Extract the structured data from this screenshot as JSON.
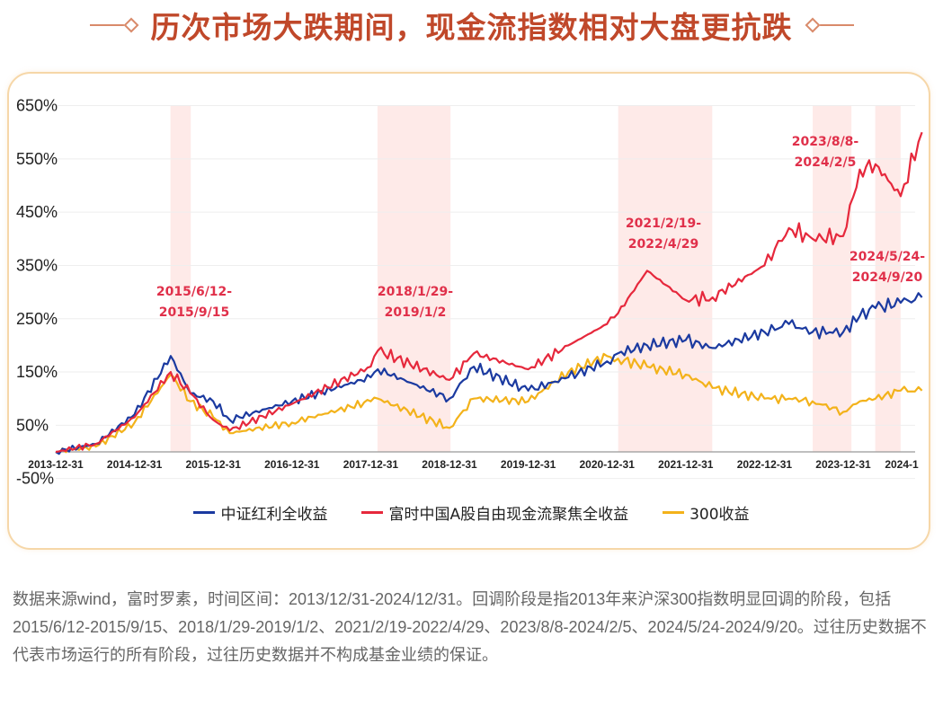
{
  "title": "历次市场大跌期间，现金流指数相对大盘更抗跌",
  "legend": [
    {
      "label": "中证红利全收益",
      "color": "#1b3aa0"
    },
    {
      "label": "富时中国A股自由现金流聚焦全收益",
      "color": "#e6283c"
    },
    {
      "label": "300收益",
      "color": "#f3b21a"
    }
  ],
  "footnote": "数据来源wind，富时罗素，时间区间：2013/12/31-2024/12/31。回调阶段是指2013年来沪深300指数明显回调的阶段，包括2015/6/12-2015/9/15、2018/1/29-2019/1/2、2021/2/19-2022/4/29、2023/8/8-2024/2/5、2024/5/24-2024/9/20。过往历史数据不代表市场运行的所有阶段，过往历史数据并不构成基金业绩的保证。",
  "chart_data": {
    "type": "line",
    "title": "历次市场大跌期间，现金流指数相对大盘更抗跌",
    "xlabel": "",
    "ylabel": "",
    "ylim": [
      -50,
      650
    ],
    "yticks": [
      "650%",
      "550%",
      "450%",
      "350%",
      "250%",
      "150%",
      "50%",
      "-50%"
    ],
    "xticks": [
      "2013-12-31",
      "2014-12-31",
      "2015-12-31",
      "2016-12-31",
      "2017-12-31",
      "2018-12-31",
      "2019-12-31",
      "2020-12-31",
      "2021-12-31",
      "2022-12-31",
      "2023-12-31",
      "2024-1"
    ],
    "grid": true,
    "legend_position": "bottom",
    "shaded_periods": [
      {
        "label": "2015/6/12-\n2015/9/15",
        "start": "2015/6/12",
        "end": "2015/9/15"
      },
      {
        "label": "2018/1/29-\n2019/1/2",
        "start": "2018/1/29",
        "end": "2019/1/2"
      },
      {
        "label": "2021/2/19-\n2022/4/29",
        "start": "2021/2/19",
        "end": "2022/4/29"
      },
      {
        "label": "2023/8/8-\n2024/2/5",
        "start": "2023/8/8",
        "end": "2024/2/5"
      },
      {
        "label": "2024/5/24-\n2024/9/20",
        "start": "2024/5/24",
        "end": "2024/9/20"
      }
    ],
    "x": [
      2013.99,
      2014.5,
      2014.99,
      2015.45,
      2015.7,
      2015.99,
      2016.2,
      2016.99,
      2017.99,
      2018.08,
      2018.99,
      2019.3,
      2019.99,
      2020.5,
      2020.99,
      2021.13,
      2021.5,
      2021.99,
      2022.33,
      2022.99,
      2023.3,
      2023.6,
      2023.99,
      2024.2,
      2024.4,
      2024.72,
      2024.99
    ],
    "series": [
      {
        "name": "中证红利全收益",
        "values": [
          0,
          15,
          70,
          180,
          110,
          95,
          60,
          95,
          140,
          155,
          100,
          160,
          115,
          140,
          170,
          185,
          200,
          210,
          195,
          225,
          240,
          225,
          225,
          255,
          270,
          280,
          290
        ]
      },
      {
        "name": "富时中国A股自由现金流聚焦全收益",
        "values": [
          0,
          15,
          65,
          150,
          110,
          60,
          40,
          90,
          160,
          190,
          135,
          185,
          155,
          200,
          240,
          260,
          340,
          285,
          290,
          350,
          420,
          400,
          405,
          530,
          540,
          480,
          600
        ]
      },
      {
        "name": "300收益",
        "values": [
          0,
          10,
          55,
          145,
          95,
          65,
          35,
          55,
          95,
          100,
          45,
          100,
          95,
          150,
          180,
          175,
          160,
          145,
          120,
          100,
          100,
          95,
          75,
          95,
          100,
          115,
          115
        ]
      }
    ]
  }
}
